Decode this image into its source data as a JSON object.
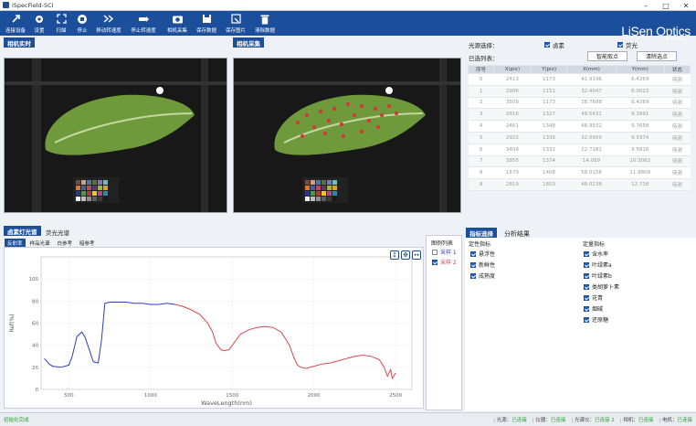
{
  "app": {
    "title": "iSpecField-SCI",
    "brand": "LiSen Optics",
    "brand_dots": "●●●●●"
  },
  "toolbar": [
    {
      "label": "连接设备",
      "icon": "connect-icon"
    },
    {
      "label": "设置",
      "icon": "gear-icon"
    },
    {
      "label": "扫描",
      "icon": "scan-icon"
    },
    {
      "label": "停止",
      "icon": "stop-icon"
    },
    {
      "label": "移动转速度",
      "icon": "fast-forward-icon"
    },
    {
      "label": "停止转速度",
      "icon": "stop-rotate-icon"
    },
    {
      "label": "相机采集",
      "icon": "camera-icon"
    },
    {
      "label": "保存数据",
      "icon": "save-icon"
    },
    {
      "label": "保存图片",
      "icon": "save-image-icon"
    },
    {
      "label": "清除数据",
      "icon": "trash-icon"
    }
  ],
  "cam_live": {
    "tab": "相机实时"
  },
  "cam_capture": {
    "tab": "相机采集"
  },
  "light": {
    "label": "光源选择：",
    "opt1": "卤素",
    "opt2": "荧光"
  },
  "selected": {
    "label": "已选列表：",
    "btn_smart": "智能取点",
    "btn_clear": "清除选点"
  },
  "points": {
    "headers": [
      "序号",
      "X(pix)",
      "Y(pix)",
      "X(mm)",
      "Y(mm)",
      "状态"
    ],
    "rows": [
      [
        "0",
        "2413",
        "1173",
        "41.9196",
        "6.4269",
        "待测"
      ],
      [
        "1",
        "2906",
        "1151",
        "32.4047",
        "6.0023",
        "待测"
      ],
      [
        "2",
        "3509",
        "1173",
        "38.7688",
        "6.4269",
        "待测"
      ],
      [
        "3",
        "2816",
        "1327",
        "49.5431",
        "9.3991",
        "待测"
      ],
      [
        "4",
        "2461",
        "1348",
        "48.9932",
        "9.7658",
        "待测"
      ],
      [
        "5",
        "2922",
        "1336",
        "32.0959",
        "9.5974",
        "待测"
      ],
      [
        "6",
        "3409",
        "1332",
        "22.7181",
        "9.5816",
        "待测"
      ],
      [
        "7",
        "3855",
        "1374",
        "14.089",
        "10.3062",
        "待测"
      ],
      [
        "8",
        "1579",
        "1408",
        "58.0158",
        "11.8809",
        "待测"
      ],
      [
        "9",
        "2819",
        "1803",
        "48.0238",
        "12.738",
        "待测"
      ]
    ]
  },
  "spec_tabs": {
    "t1": "卤素灯光谱",
    "t2": "荧光光谱"
  },
  "sub_tabs": {
    "s1": "反射率",
    "s2": "样品光谱",
    "s3": "白参考",
    "s4": "暗参考"
  },
  "chart_data": {
    "type": "line",
    "xlabel": "WaveLength(nm)",
    "ylabel": "Ref(%)",
    "xlim": [
      330,
      2600
    ],
    "ylim": [
      0,
      120
    ],
    "xticks": [
      500,
      1000,
      1500,
      2000,
      2500
    ],
    "yticks": [
      0,
      20,
      40,
      60,
      80,
      100
    ],
    "series": [
      {
        "name": "采样 1",
        "color": "#2b3fbf",
        "x": [
          350,
          380,
          400,
          450,
          500,
          520,
          550,
          580,
          600,
          650,
          680,
          700,
          720,
          750,
          800,
          850,
          900,
          950,
          1000,
          1050,
          1100,
          1150
        ],
        "y": [
          28,
          23,
          21,
          20,
          22,
          30,
          48,
          52,
          47,
          25,
          24,
          45,
          78,
          79,
          79,
          79,
          78,
          78,
          77,
          77,
          78,
          77
        ]
      },
      {
        "name": "采样 2",
        "color": "#d9484a",
        "x": [
          1150,
          1200,
          1250,
          1300,
          1350,
          1380,
          1400,
          1430,
          1450,
          1480,
          1500,
          1550,
          1600,
          1650,
          1700,
          1750,
          1800,
          1850,
          1880,
          1900,
          1920,
          1950,
          2000,
          2050,
          2100,
          2150,
          2200,
          2250,
          2300,
          2350,
          2400,
          2430,
          2450,
          2470,
          2480,
          2500
        ],
        "y": [
          77,
          75,
          72,
          68,
          60,
          52,
          42,
          36,
          35,
          36,
          40,
          50,
          54,
          56,
          57,
          56,
          52,
          40,
          28,
          22,
          20,
          19,
          21,
          23,
          24,
          26,
          28,
          30,
          31,
          30,
          27,
          20,
          12,
          18,
          10,
          15
        ]
      }
    ]
  },
  "legend": {
    "title": "图例列表",
    "item1": "采样 1",
    "item2": "采样 2"
  },
  "indicators": {
    "tab1": "指标选择",
    "tab2": "分析结果",
    "qual_title": "定性指标",
    "qual": [
      "悬浮性",
      "新鲜性",
      "成熟度"
    ],
    "quant_title": "定量指标",
    "quant": [
      "含水率",
      "叶绿素a",
      "叶绿素b",
      "类胡萝卜素",
      "花青",
      "烟碱",
      "还原糖"
    ]
  },
  "status": {
    "left": "初始化完成",
    "items": [
      {
        "k": "光源：",
        "v": "已连接"
      },
      {
        "k": "仪器：",
        "v": "已连接"
      },
      {
        "k": "光谱仪：",
        "v": "已连接 2"
      },
      {
        "k": "相机：",
        "v": "已连接"
      },
      {
        "k": "电机：",
        "v": "已连接"
      }
    ]
  },
  "colors": {
    "primary": "#1b4f9c",
    "green": "#2e9b2e"
  }
}
